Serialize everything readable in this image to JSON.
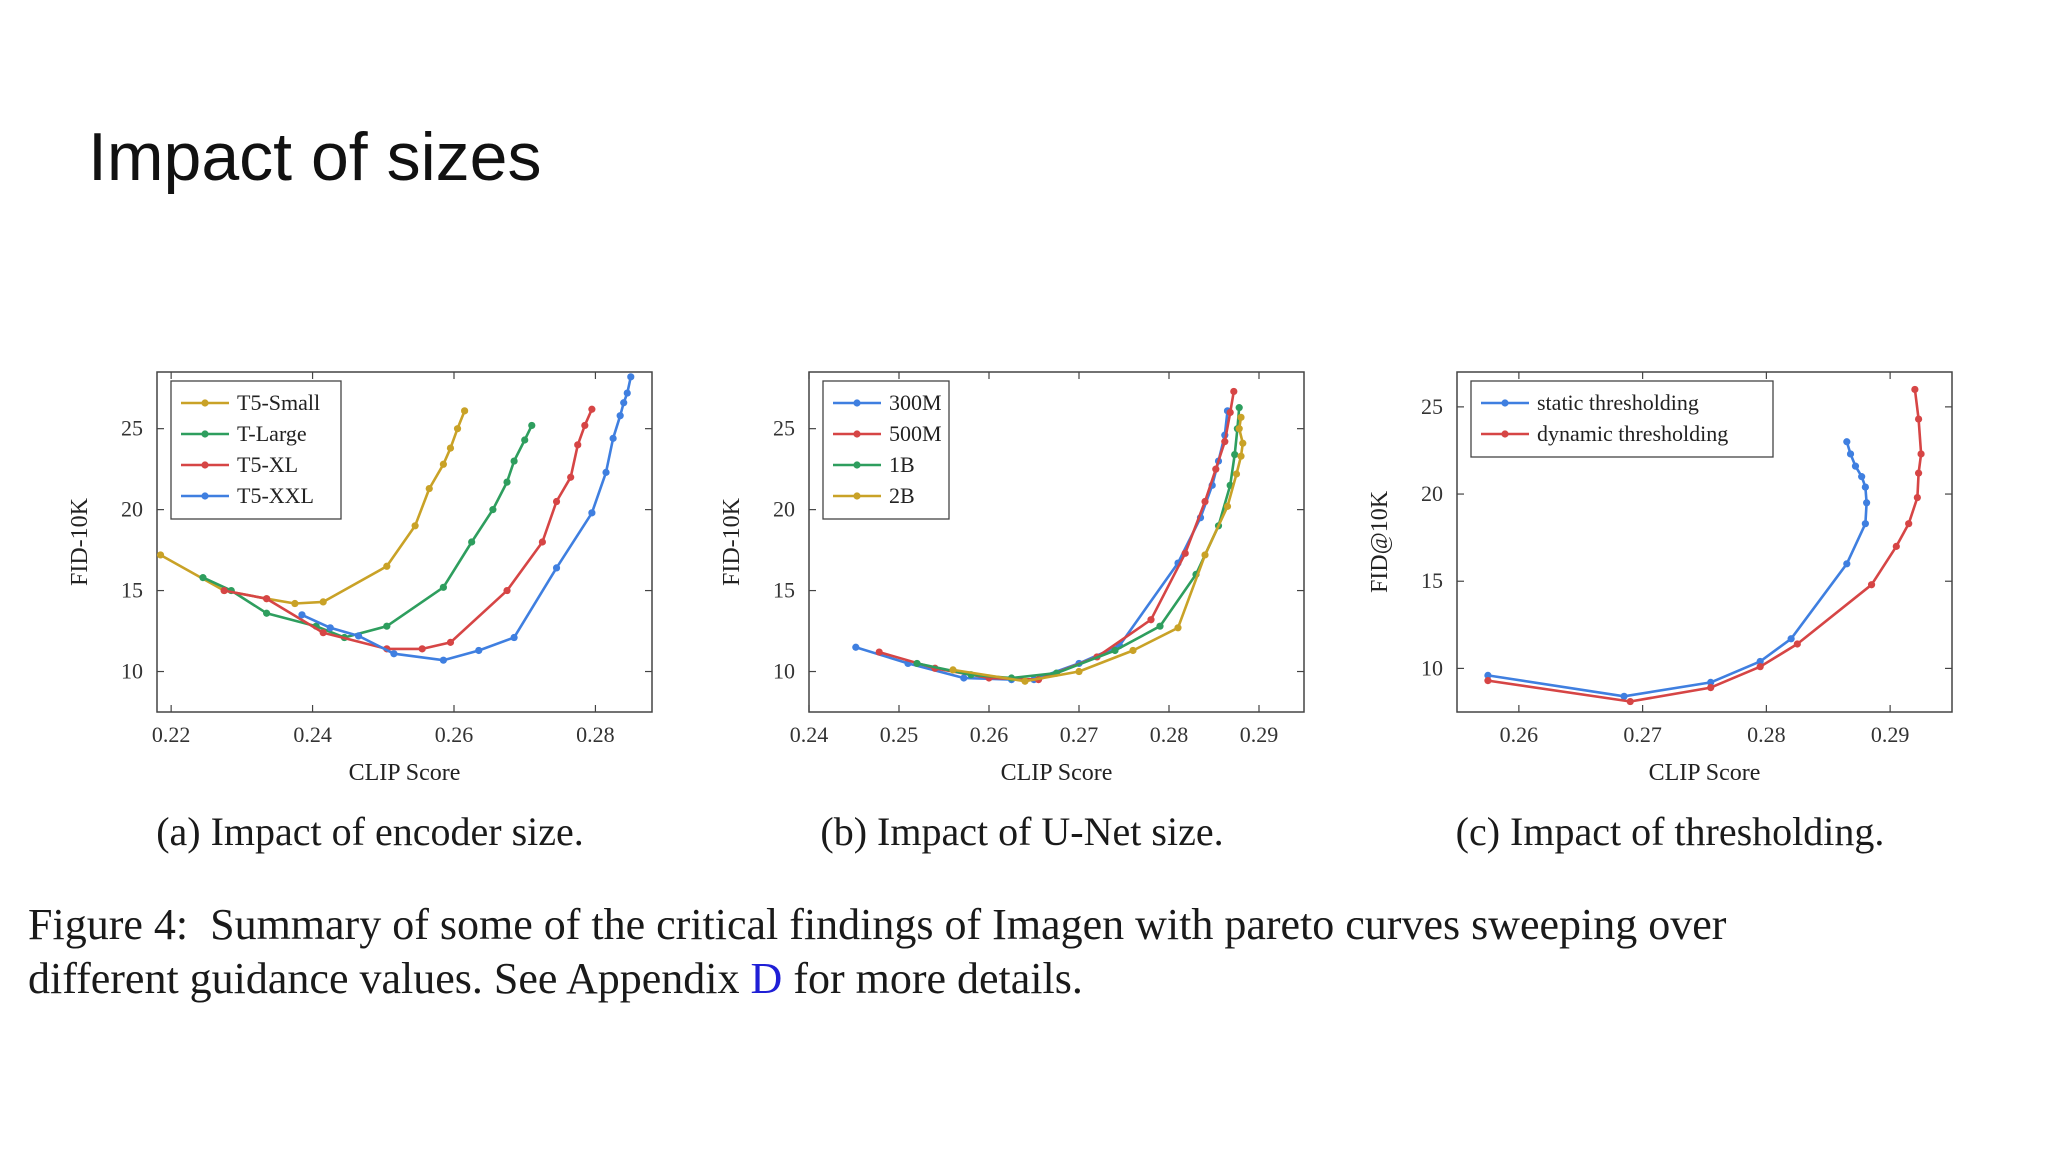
{
  "slide": {
    "title": "Impact of sizes"
  },
  "caption": {
    "prefix": "Figure 4:",
    "line1": "Summary of some of the critical findings of Imagen with pareto curves sweeping over",
    "line2_before": "different guidance values. See Appendix ",
    "link": "D",
    "line2_after": " for more details."
  },
  "chart_data": [
    {
      "type": "line",
      "subcaption": "(a) Impact of encoder size.",
      "xlabel": "CLIP Score",
      "ylabel": "FID-10K",
      "xlim": [
        0.218,
        0.288
      ],
      "ylim": [
        7.5,
        28.5
      ],
      "xticks": [
        0.22,
        0.24,
        0.26,
        0.28
      ],
      "xtick_labels": [
        "0.22",
        "0.24",
        "0.26",
        "0.28"
      ],
      "yticks": [
        10,
        15,
        20,
        25
      ],
      "ytick_labels": [
        "10",
        "15",
        "20",
        "25"
      ],
      "legend_position": "top-left",
      "series": [
        {
          "name": "T5-Small",
          "color": "#c9a227",
          "points": [
            [
              0.2185,
              17.2
            ],
            [
              0.2275,
              15.0
            ],
            [
              0.2335,
              14.5
            ],
            [
              0.2375,
              14.2
            ],
            [
              0.2415,
              14.3
            ],
            [
              0.2505,
              16.5
            ],
            [
              0.2545,
              19.0
            ],
            [
              0.2565,
              21.3
            ],
            [
              0.2585,
              22.8
            ],
            [
              0.2595,
              23.8
            ],
            [
              0.2605,
              25.0
            ],
            [
              0.2615,
              26.1
            ]
          ]
        },
        {
          "name": "T-Large",
          "color": "#2e9e5e",
          "points": [
            [
              0.2245,
              15.8
            ],
            [
              0.2285,
              15.0
            ],
            [
              0.2335,
              13.6
            ],
            [
              0.2405,
              12.8
            ],
            [
              0.2445,
              12.1
            ],
            [
              0.2505,
              12.8
            ],
            [
              0.2585,
              15.2
            ],
            [
              0.2625,
              18.0
            ],
            [
              0.2655,
              20.0
            ],
            [
              0.2675,
              21.7
            ],
            [
              0.2685,
              23.0
            ],
            [
              0.27,
              24.3
            ],
            [
              0.271,
              25.2
            ]
          ]
        },
        {
          "name": "T5-XL",
          "color": "#d64545",
          "points": [
            [
              0.2275,
              15.0
            ],
            [
              0.2335,
              14.5
            ],
            [
              0.2415,
              12.4
            ],
            [
              0.2505,
              11.4
            ],
            [
              0.2555,
              11.4
            ],
            [
              0.2595,
              11.8
            ],
            [
              0.2675,
              15.0
            ],
            [
              0.2725,
              18.0
            ],
            [
              0.2745,
              20.5
            ],
            [
              0.2765,
              22.0
            ],
            [
              0.2775,
              24.0
            ],
            [
              0.2785,
              25.2
            ],
            [
              0.2795,
              26.2
            ]
          ]
        },
        {
          "name": "T5-XXL",
          "color": "#3f7fe0",
          "points": [
            [
              0.2385,
              13.5
            ],
            [
              0.2425,
              12.7
            ],
            [
              0.2465,
              12.2
            ],
            [
              0.2515,
              11.1
            ],
            [
              0.2585,
              10.7
            ],
            [
              0.2635,
              11.3
            ],
            [
              0.2685,
              12.1
            ],
            [
              0.2745,
              16.4
            ],
            [
              0.2795,
              19.8
            ],
            [
              0.2815,
              22.3
            ],
            [
              0.2825,
              24.4
            ],
            [
              0.2835,
              25.8
            ],
            [
              0.284,
              26.6
            ],
            [
              0.2845,
              27.2
            ],
            [
              0.285,
              28.2
            ]
          ]
        }
      ]
    },
    {
      "type": "line",
      "subcaption": "(b) Impact of U-Net size.",
      "xlabel": "CLIP Score",
      "ylabel": "FID-10K",
      "xlim": [
        0.24,
        0.295
      ],
      "ylim": [
        7.5,
        28.5
      ],
      "xticks": [
        0.24,
        0.25,
        0.26,
        0.27,
        0.28,
        0.29
      ],
      "xtick_labels": [
        "0.24",
        "0.25",
        "0.26",
        "0.27",
        "0.28",
        "0.29"
      ],
      "yticks": [
        10,
        15,
        20,
        25
      ],
      "ytick_labels": [
        "10",
        "15",
        "20",
        "25"
      ],
      "legend_position": "top-left",
      "series": [
        {
          "name": "300M",
          "color": "#3f7fe0",
          "points": [
            [
              0.2452,
              11.5
            ],
            [
              0.251,
              10.5
            ],
            [
              0.2572,
              9.6
            ],
            [
              0.2625,
              9.5
            ],
            [
              0.265,
              9.5
            ],
            [
              0.27,
              10.5
            ],
            [
              0.2745,
              11.6
            ],
            [
              0.281,
              16.7
            ],
            [
              0.2835,
              19.5
            ],
            [
              0.2848,
              21.5
            ],
            [
              0.2855,
              23.0
            ],
            [
              0.2862,
              24.6
            ],
            [
              0.2865,
              26.1
            ]
          ]
        },
        {
          "name": "500M",
          "color": "#d64545",
          "points": [
            [
              0.2478,
              11.2
            ],
            [
              0.254,
              10.2
            ],
            [
              0.26,
              9.6
            ],
            [
              0.2655,
              9.5
            ],
            [
              0.272,
              10.9
            ],
            [
              0.278,
              13.2
            ],
            [
              0.2818,
              17.3
            ],
            [
              0.284,
              20.5
            ],
            [
              0.2852,
              22.5
            ],
            [
              0.2862,
              24.2
            ],
            [
              0.2868,
              26.0
            ],
            [
              0.2872,
              27.3
            ]
          ]
        },
        {
          "name": "1B",
          "color": "#2e9e5e",
          "points": [
            [
              0.252,
              10.5
            ],
            [
              0.258,
              9.8
            ],
            [
              0.2625,
              9.6
            ],
            [
              0.2675,
              9.9
            ],
            [
              0.274,
              11.3
            ],
            [
              0.279,
              12.8
            ],
            [
              0.283,
              16.0
            ],
            [
              0.2855,
              19.0
            ],
            [
              0.2868,
              21.5
            ],
            [
              0.2873,
              23.4
            ],
            [
              0.2876,
              25.0
            ],
            [
              0.2878,
              26.3
            ]
          ]
        },
        {
          "name": "2B",
          "color": "#c9a227",
          "points": [
            [
              0.256,
              10.1
            ],
            [
              0.264,
              9.4
            ],
            [
              0.27,
              10.0
            ],
            [
              0.276,
              11.3
            ],
            [
              0.281,
              12.7
            ],
            [
              0.284,
              17.2
            ],
            [
              0.2865,
              20.2
            ],
            [
              0.2875,
              22.2
            ],
            [
              0.288,
              23.3
            ],
            [
              0.2882,
              24.1
            ],
            [
              0.2878,
              25.0
            ],
            [
              0.288,
              25.7
            ]
          ]
        }
      ]
    },
    {
      "type": "line",
      "subcaption": "(c) Impact of thresholding.",
      "xlabel": "CLIP Score",
      "ylabel": "FID@10K",
      "xlim": [
        0.255,
        0.295
      ],
      "ylim": [
        7.5,
        27.0
      ],
      "xticks": [
        0.26,
        0.27,
        0.28,
        0.29
      ],
      "xtick_labels": [
        "0.26",
        "0.27",
        "0.28",
        "0.29"
      ],
      "yticks": [
        10,
        15,
        20,
        25
      ],
      "ytick_labels": [
        "10",
        "15",
        "20",
        "25"
      ],
      "legend_position": "top-left",
      "series": [
        {
          "name": "static thresholding",
          "color": "#3f7fe0",
          "points": [
            [
              0.2575,
              9.6
            ],
            [
              0.2685,
              8.4
            ],
            [
              0.2755,
              9.2
            ],
            [
              0.2795,
              10.4
            ],
            [
              0.282,
              11.7
            ],
            [
              0.2865,
              16.0
            ],
            [
              0.288,
              18.3
            ],
            [
              0.2881,
              19.5
            ],
            [
              0.288,
              20.4
            ],
            [
              0.2877,
              21.0
            ],
            [
              0.2872,
              21.6
            ],
            [
              0.2868,
              22.3
            ],
            [
              0.2865,
              23.0
            ]
          ]
        },
        {
          "name": "dynamic thresholding",
          "color": "#d64545",
          "points": [
            [
              0.2575,
              9.3
            ],
            [
              0.269,
              8.1
            ],
            [
              0.2755,
              8.9
            ],
            [
              0.2795,
              10.1
            ],
            [
              0.2825,
              11.4
            ],
            [
              0.2885,
              14.8
            ],
            [
              0.2905,
              17.0
            ],
            [
              0.2915,
              18.3
            ],
            [
              0.2922,
              19.8
            ],
            [
              0.2923,
              21.2
            ],
            [
              0.2925,
              22.3
            ],
            [
              0.2923,
              24.3
            ],
            [
              0.292,
              26.0
            ]
          ]
        }
      ]
    }
  ]
}
